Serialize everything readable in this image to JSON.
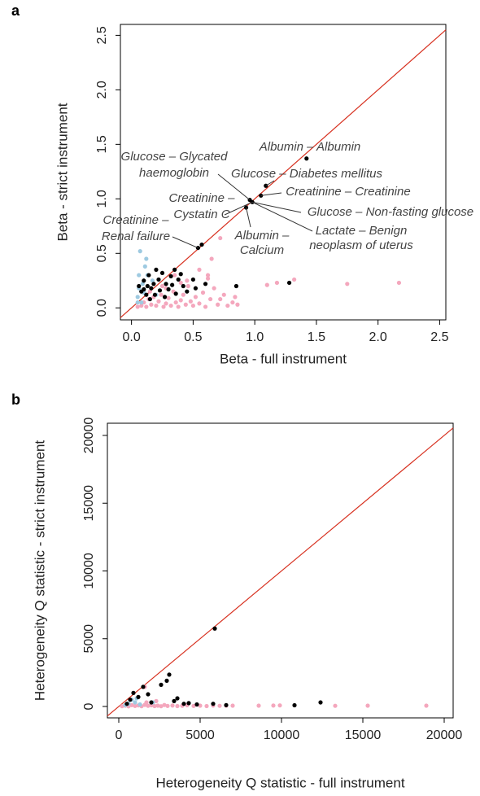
{
  "chart_data": [
    {
      "type": "scatter",
      "panel_label": "a",
      "x_label": "Beta - full instrument",
      "y_label": "Beta - strict instrument",
      "xlim": [
        -0.09,
        2.55
      ],
      "ylim": [
        -0.11,
        2.6
      ],
      "xticks": [
        {
          "value": 0,
          "label": "0.0"
        },
        0.5,
        {
          "value": 1,
          "label": "1.0"
        },
        1.5,
        {
          "value": 2,
          "label": "2.0"
        },
        2.5
      ],
      "yticks": [
        {
          "value": 0,
          "label": "0.0"
        },
        0.5,
        {
          "value": 1,
          "label": "1.0"
        },
        1.5,
        {
          "value": 2,
          "label": "2.0"
        },
        2.5
      ],
      "identity_line": true,
      "identity_color": "#d7301f",
      "series": [
        {
          "color": "#f4a7bd",
          "x": [
            0.08,
            0.1,
            0.12,
            0.14,
            0.16,
            0.18,
            0.2,
            0.22,
            0.24,
            0.26,
            0.28,
            0.3,
            0.32,
            0.34,
            0.36,
            0.38,
            0.4,
            0.42,
            0.44,
            0.46,
            0.48,
            0.5,
            0.52,
            0.55,
            0.58,
            0.6,
            0.62,
            0.64,
            0.67,
            0.7,
            0.72,
            0.72,
            0.75,
            0.78,
            0.82,
            0.84,
            0.86,
            0.62,
            0.45,
            0.65,
            0.55,
            1.1,
            1.18,
            1.32,
            1.75,
            2.17,
            0.35,
            0.25,
            0.15,
            0.05,
            0.28,
            0.4
          ],
          "y": [
            0.02,
            0.05,
            0.01,
            0.08,
            0.03,
            0.1,
            0.02,
            0.06,
            0.12,
            0.01,
            0.04,
            0.09,
            0.02,
            0.15,
            0.05,
            0.01,
            0.07,
            0.12,
            0.03,
            0.2,
            0.06,
            0.02,
            0.1,
            0.04,
            0.14,
            0.01,
            0.27,
            0.08,
            0.18,
            0.03,
            0.64,
            0.08,
            0.12,
            0.02,
            0.05,
            0.1,
            0.03,
            0.3,
            0.25,
            0.45,
            0.35,
            0.21,
            0.23,
            0.26,
            0.22,
            0.23,
            0.3,
            0.2,
            0.15,
            0.01,
            0.18,
            0.23
          ]
        },
        {
          "color": "#9ecae1",
          "x": [
            0.05,
            0.06,
            0.07,
            0.08,
            0.09,
            0.1,
            0.12,
            0.13,
            0.15,
            0.17,
            0.05,
            0.2,
            0.06,
            0.11
          ],
          "y": [
            0.1,
            0.18,
            0.52,
            0.05,
            0.22,
            0.14,
            0.45,
            0.3,
            0.08,
            0.25,
            0.05,
            0.12,
            0.3,
            0.38
          ]
        },
        {
          "color": "#000000",
          "x": [
            0.06,
            0.08,
            0.1,
            0.1,
            0.12,
            0.13,
            0.14,
            0.15,
            0.16,
            0.18,
            0.19,
            0.2,
            0.22,
            0.23,
            0.25,
            0.27,
            0.28,
            0.3,
            0.32,
            0.33,
            0.35,
            0.36,
            0.38,
            0.4,
            0.42,
            0.45,
            0.5,
            0.52,
            0.6,
            0.85,
            1.28,
            0.54,
            0.57,
            0.93,
            0.96,
            0.98,
            1.05,
            1.09,
            1.42
          ],
          "y": [
            0.2,
            0.15,
            0.17,
            0.25,
            0.12,
            0.2,
            0.3,
            0.08,
            0.18,
            0.22,
            0.12,
            0.35,
            0.26,
            0.16,
            0.32,
            0.1,
            0.22,
            0.17,
            0.29,
            0.21,
            0.35,
            0.13,
            0.26,
            0.31,
            0.2,
            0.15,
            0.26,
            0.18,
            0.22,
            0.2,
            0.23,
            0.55,
            0.58,
            0.92,
            0.99,
            0.97,
            1.03,
            1.12,
            1.37
          ]
        }
      ],
      "annotations": [
        {
          "text": [
            "Albumin – Albumin"
          ],
          "x": 1.42,
          "y": 1.37
        },
        {
          "text": [
            "Glucose – Glycated",
            "haemoglobin"
          ],
          "x": 0.96,
          "y": 0.99
        },
        {
          "text": [
            "Glucose – Diabetes mellitus"
          ],
          "x": 1.09,
          "y": 1.12
        },
        {
          "text": [
            "Creatinine – Creatinine"
          ],
          "x": 1.05,
          "y": 1.03
        },
        {
          "text": [
            "Creatinine –",
            "Cystatin C"
          ],
          "x": 0.98,
          "y": 0.97
        },
        {
          "text": [
            "Glucose – Non-fasting glucose"
          ],
          "x": 0.98,
          "y": 0.97
        },
        {
          "text": [
            "Creatinine –",
            "Renal failure"
          ],
          "x": 0.54,
          "y": 0.55
        },
        {
          "text": [
            "Albumin –",
            "Calcium"
          ],
          "x": 0.93,
          "y": 0.92
        },
        {
          "text": [
            "Lactate – Benign",
            "neoplasm of uterus"
          ],
          "x": 0.98,
          "y": 0.97
        }
      ]
    },
    {
      "type": "scatter",
      "panel_label": "b",
      "x_label": "Heterogeneity Q statistic - full instrument",
      "y_label": "Heterogeneity Q statistic - strict instrument",
      "xlim": [
        -700,
        20550
      ],
      "ylim": [
        -840,
        20900
      ],
      "xticks": [
        0,
        5000,
        10000,
        15000,
        20000
      ],
      "yticks": [
        0,
        5000,
        10000,
        15000,
        20000
      ],
      "identity_line": true,
      "identity_color": "#d7301f",
      "series": [
        {
          "color": "#f4a7bd",
          "x": [
            200,
            400,
            600,
            800,
            1000,
            1200,
            1400,
            1600,
            1600,
            1800,
            2000,
            2200,
            2400,
            2600,
            2800,
            3000,
            3300,
            3600,
            3900,
            4200,
            4600,
            5000,
            5400,
            5800,
            6200,
            6600,
            7000,
            8600,
            9500,
            9900,
            13300,
            15300,
            18900,
            2300,
            1700
          ],
          "y": [
            20,
            60,
            10,
            100,
            40,
            80,
            20,
            120,
            1450,
            50,
            90,
            30,
            60,
            20,
            110,
            40,
            70,
            30,
            50,
            90,
            40,
            60,
            30,
            70,
            50,
            60,
            60,
            60,
            70,
            80,
            50,
            60,
            60,
            400,
            300
          ]
        },
        {
          "color": "#9ecae1",
          "x": [
            600,
            800,
            1000,
            1300,
            2100,
            1100,
            400
          ],
          "y": [
            200,
            500,
            300,
            150,
            300,
            600,
            100
          ]
        },
        {
          "color": "#000000",
          "x": [
            500,
            700,
            900,
            1200,
            1500,
            1800,
            2000,
            2600,
            2950,
            3100,
            3400,
            3600,
            4000,
            4300,
            4800,
            5800,
            5900,
            6600,
            10800,
            12400
          ],
          "y": [
            200,
            500,
            1000,
            700,
            1450,
            900,
            300,
            1600,
            1900,
            2350,
            400,
            600,
            200,
            250,
            150,
            200,
            5750,
            100,
            90,
            300
          ]
        }
      ]
    }
  ]
}
